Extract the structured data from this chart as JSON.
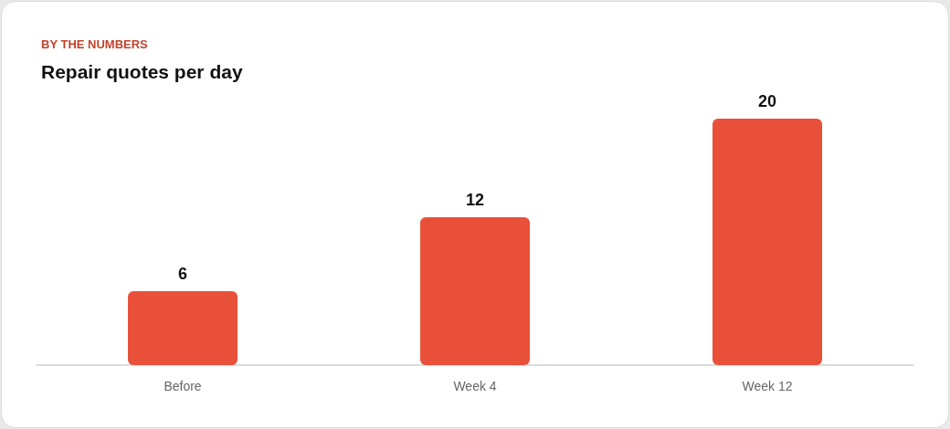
{
  "chart_data": {
    "type": "bar",
    "subtitle": "BY THE NUMBERS",
    "title": "Repair quotes per day",
    "categories": [
      "Before",
      "Week 4",
      "Week 12"
    ],
    "values": [
      6,
      12,
      20
    ],
    "color": "#e8503a",
    "data_labels": true
  }
}
